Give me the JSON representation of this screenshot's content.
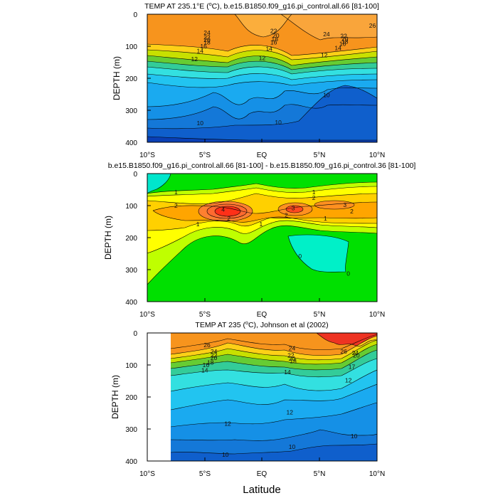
{
  "chart_data": [
    {
      "type": "contour",
      "title_html_prefix": "TEMP AT 235.1",
      "title_degree_unit": "°E (",
      "title_unit_sup": "o",
      "title_unit_suffix": "C), b.e15.B1850.f09_g16.pi_control.all.66 [81-100]",
      "xlabel": "",
      "ylabel": "DEPTH (m)",
      "x_range": [
        -10,
        10
      ],
      "y_range": [
        0,
        400
      ],
      "x_ticks": [
        "10°S",
        "5°S",
        "EQ",
        "5°N",
        "10°N"
      ],
      "y_ticks": [
        "0",
        "100",
        "200",
        "300",
        "400"
      ],
      "contour_labels": [
        {
          "text": "24",
          "lat": -4.8,
          "depth": 58
        },
        {
          "text": "22",
          "lat": -4.8,
          "depth": 72
        },
        {
          "text": "20",
          "lat": -4.8,
          "depth": 80
        },
        {
          "text": "18",
          "lat": -4.8,
          "depth": 88
        },
        {
          "text": "16",
          "lat": -5.1,
          "depth": 100
        },
        {
          "text": "14",
          "lat": -5.4,
          "depth": 114
        },
        {
          "text": "12",
          "lat": -5.9,
          "depth": 140
        },
        {
          "text": "22",
          "lat": 1.0,
          "depth": 52
        },
        {
          "text": "20",
          "lat": 1.2,
          "depth": 67
        },
        {
          "text": "18",
          "lat": 1.1,
          "depth": 78
        },
        {
          "text": "16",
          "lat": 1.0,
          "depth": 88
        },
        {
          "text": "14",
          "lat": 0.6,
          "depth": 108
        },
        {
          "text": "12",
          "lat": 0.0,
          "depth": 137
        },
        {
          "text": "10",
          "lat": -5.4,
          "depth": 340
        },
        {
          "text": "10",
          "lat": 1.4,
          "depth": 338
        },
        {
          "text": "10",
          "lat": 5.6,
          "depth": 252
        },
        {
          "text": "24",
          "lat": 5.6,
          "depth": 62
        },
        {
          "text": "22",
          "lat": 7.1,
          "depth": 68
        },
        {
          "text": "20",
          "lat": 7.2,
          "depth": 77
        },
        {
          "text": "18",
          "lat": 7.2,
          "depth": 85
        },
        {
          "text": "16",
          "lat": 7.0,
          "depth": 92
        },
        {
          "text": "14",
          "lat": 6.6,
          "depth": 106
        },
        {
          "text": "12",
          "lat": 5.4,
          "depth": 128
        },
        {
          "text": "26",
          "lat": 9.6,
          "depth": 36
        }
      ]
    },
    {
      "type": "contour",
      "title": "b.e15.B1850.f09_g16.pi_control.all.66 [81-100] - b.e15.B1850.f09_g16.pi_control.36 [81-100]",
      "xlabel": "",
      "ylabel": "DEPTH (m)",
      "x_range": [
        -10,
        10
      ],
      "y_range": [
        0,
        400
      ],
      "x_ticks": [
        "10°S",
        "5°S",
        "EQ",
        "5°N",
        "10°N"
      ],
      "y_ticks": [
        "0",
        "100",
        "200",
        "300",
        "400"
      ],
      "contour_labels": [
        {
          "text": "1",
          "lat": -7.5,
          "depth": 58
        },
        {
          "text": "2",
          "lat": -7.5,
          "depth": 100
        },
        {
          "text": "4",
          "lat": -3.4,
          "depth": 112
        },
        {
          "text": "2",
          "lat": -2.9,
          "depth": 140
        },
        {
          "text": "1",
          "lat": -5.6,
          "depth": 158
        },
        {
          "text": "1",
          "lat": -0.1,
          "depth": 158
        },
        {
          "text": "3",
          "lat": 2.7,
          "depth": 108
        },
        {
          "text": "2",
          "lat": 2.1,
          "depth": 130
        },
        {
          "text": "1",
          "lat": 4.5,
          "depth": 58
        },
        {
          "text": "2",
          "lat": 4.5,
          "depth": 75
        },
        {
          "text": "3",
          "lat": 7.2,
          "depth": 98
        },
        {
          "text": "2",
          "lat": 7.8,
          "depth": 118
        },
        {
          "text": "1",
          "lat": 5.5,
          "depth": 140
        },
        {
          "text": "0",
          "lat": 3.3,
          "depth": 258
        },
        {
          "text": "0",
          "lat": 7.5,
          "depth": 312
        }
      ]
    },
    {
      "type": "contour",
      "title_prefix": "TEMP AT 235 (",
      "title_unit_sup": "o",
      "title_suffix": "C), Johnson et al (2002)",
      "xlabel": "Latitude",
      "ylabel": "DEPTH (m)",
      "x_range": [
        -10,
        10
      ],
      "y_range": [
        0,
        400
      ],
      "data_lat_range": [
        -8,
        10
      ],
      "x_ticks": [
        "10°S",
        "5°S",
        "EQ",
        "5°N",
        "10°N"
      ],
      "y_ticks": [
        "0",
        "100",
        "200",
        "300",
        "400"
      ],
      "contour_labels": [
        {
          "text": "26",
          "lat": -4.8,
          "depth": 38
        },
        {
          "text": "24",
          "lat": -4.2,
          "depth": 58
        },
        {
          "text": "22",
          "lat": -4.2,
          "depth": 70
        },
        {
          "text": "20",
          "lat": -4.2,
          "depth": 78
        },
        {
          "text": "18",
          "lat": -4.5,
          "depth": 92
        },
        {
          "text": "16",
          "lat": -4.9,
          "depth": 100
        },
        {
          "text": "14",
          "lat": -5.0,
          "depth": 117
        },
        {
          "text": "24",
          "lat": 2.6,
          "depth": 48
        },
        {
          "text": "22",
          "lat": 2.5,
          "depth": 70
        },
        {
          "text": "20",
          "lat": 2.6,
          "depth": 80
        },
        {
          "text": "18",
          "lat": 2.7,
          "depth": 88
        },
        {
          "text": "14",
          "lat": 2.2,
          "depth": 122
        },
        {
          "text": "12",
          "lat": 7.5,
          "depth": 148
        },
        {
          "text": "26",
          "lat": 7.1,
          "depth": 58
        },
        {
          "text": "24",
          "lat": 8.1,
          "depth": 62
        },
        {
          "text": "20",
          "lat": 8.2,
          "depth": 70
        },
        {
          "text": "17",
          "lat": 7.8,
          "depth": 105
        },
        {
          "text": "12",
          "lat": 2.4,
          "depth": 248
        },
        {
          "text": "12",
          "lat": -3.0,
          "depth": 283
        },
        {
          "text": "10",
          "lat": 2.6,
          "depth": 355
        },
        {
          "text": "10",
          "lat": -3.2,
          "depth": 380
        },
        {
          "text": "10",
          "lat": 8.0,
          "depth": 322
        }
      ]
    }
  ],
  "shared_xlabel": "Latitude"
}
